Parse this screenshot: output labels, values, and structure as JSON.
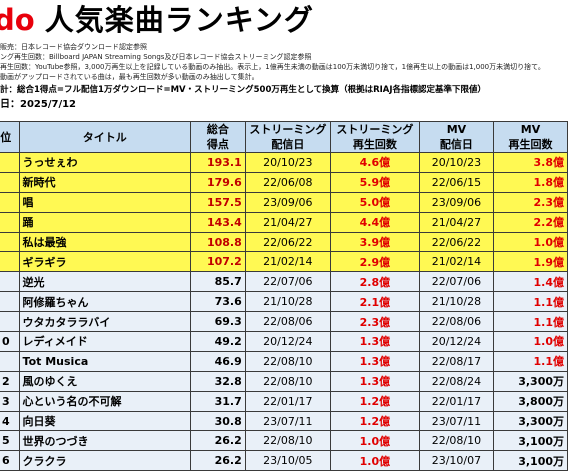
{
  "header": {
    "brand": "do",
    "title": "人気楽曲ランキング"
  },
  "notes": [
    "販売：日本レコード協会ダウンロード認定参照",
    "ング再生回数：Billboard JAPAN Streaming Songs及び日本レコード協会ストリーミング認定参照",
    "再生回数：YouTube参照，3,000万再生以上を記録している動画のみ抽出。表示上，1億再生未満の動画は100万未満切り捨て，1億再生以上の動画は1,000万未満切り捨て。",
    "動画がアップロードされている曲は，最も再生回数が多い動画のみ抽出して集計。"
  ],
  "basis": "計：総合1得点=フル配信1万ダウンロード=MV・ストリーミング500万再生として換算（根拠はRIAJ各指標認定基準下限値）",
  "as_of": "日：2025/7/12",
  "table": {
    "headers": {
      "rank": "位",
      "title": "タイトル",
      "score_1": "総合",
      "score_2": "得点",
      "stream_date_1": "ストリーミング",
      "stream_date_2": "配信日",
      "stream_plays_1": "ストリーミング",
      "stream_plays_2": "再生回数",
      "mv_date_1": "MV",
      "mv_date_2": "配信日",
      "mv_plays_1": "MV",
      "mv_plays_2": "再生回数"
    },
    "rows": [
      {
        "rank": "",
        "title": "うっせぇわ",
        "score": "193.1",
        "stream_date": "20/10/23",
        "stream_plays": "4.6億",
        "mv_date": "20/10/23",
        "mv_plays": "3.8億"
      },
      {
        "rank": "",
        "title": "新時代",
        "score": "179.6",
        "stream_date": "22/06/08",
        "stream_plays": "5.9億",
        "mv_date": "22/06/15",
        "mv_plays": "1.8億"
      },
      {
        "rank": "",
        "title": "唱",
        "score": "157.5",
        "stream_date": "23/09/06",
        "stream_plays": "5.0億",
        "mv_date": "23/09/06",
        "mv_plays": "2.3億"
      },
      {
        "rank": "",
        "title": "踊",
        "score": "143.4",
        "stream_date": "21/04/27",
        "stream_plays": "4.4億",
        "mv_date": "21/04/27",
        "mv_plays": "2.2億"
      },
      {
        "rank": "",
        "title": "私は最強",
        "score": "108.8",
        "stream_date": "22/06/22",
        "stream_plays": "3.9億",
        "mv_date": "22/06/22",
        "mv_plays": "1.0億"
      },
      {
        "rank": "",
        "title": "ギラギラ",
        "score": "107.2",
        "stream_date": "21/02/14",
        "stream_plays": "2.9億",
        "mv_date": "21/02/14",
        "mv_plays": "1.9億"
      },
      {
        "rank": "",
        "title": "逆光",
        "score": "85.7",
        "stream_date": "22/07/06",
        "stream_plays": "2.8億",
        "mv_date": "22/07/06",
        "mv_plays": "1.4億"
      },
      {
        "rank": "",
        "title": "阿修羅ちゃん",
        "score": "73.6",
        "stream_date": "21/10/28",
        "stream_plays": "2.1億",
        "mv_date": "21/10/28",
        "mv_plays": "1.1億"
      },
      {
        "rank": "",
        "title": "ウタカタララバイ",
        "score": "69.3",
        "stream_date": "22/08/06",
        "stream_plays": "2.3億",
        "mv_date": "22/08/06",
        "mv_plays": "1.1億"
      },
      {
        "rank": "0",
        "title": "レディメイド",
        "score": "49.2",
        "stream_date": "20/12/24",
        "stream_plays": "1.3億",
        "mv_date": "20/12/24",
        "mv_plays": "1.0億"
      },
      {
        "rank": "",
        "title": "Tot Musica",
        "score": "46.9",
        "stream_date": "22/08/10",
        "stream_plays": "1.3億",
        "mv_date": "22/08/17",
        "mv_plays": "1.1億"
      },
      {
        "rank": "2",
        "title": "風のゆくえ",
        "score": "32.8",
        "stream_date": "22/08/10",
        "stream_plays": "1.3億",
        "mv_date": "22/08/24",
        "mv_plays": "3,300万"
      },
      {
        "rank": "3",
        "title": "心という名の不可解",
        "score": "31.7",
        "stream_date": "22/01/17",
        "stream_plays": "1.2億",
        "mv_date": "22/01/17",
        "mv_plays": "3,800万"
      },
      {
        "rank": "4",
        "title": "向日葵",
        "score": "30.8",
        "stream_date": "23/07/11",
        "stream_plays": "1.2億",
        "mv_date": "23/07/11",
        "mv_plays": "3,300万"
      },
      {
        "rank": "5",
        "title": "世界のつづき",
        "score": "26.2",
        "stream_date": "22/08/10",
        "stream_plays": "1.0億",
        "mv_date": "22/08/10",
        "mv_plays": "3,100万"
      },
      {
        "rank": "6",
        "title": "クラクラ",
        "score": "26.2",
        "stream_date": "23/10/05",
        "stream_plays": "1.0億",
        "mv_date": "23/10/07",
        "mv_plays": "3,100万"
      }
    ]
  },
  "colors": {
    "brand_red": "#e8000b",
    "header_fill": "#c6dcf0",
    "highlight_fill": "#fff953",
    "row_fill": "#e9f0f8",
    "value_red": "#e00000"
  }
}
